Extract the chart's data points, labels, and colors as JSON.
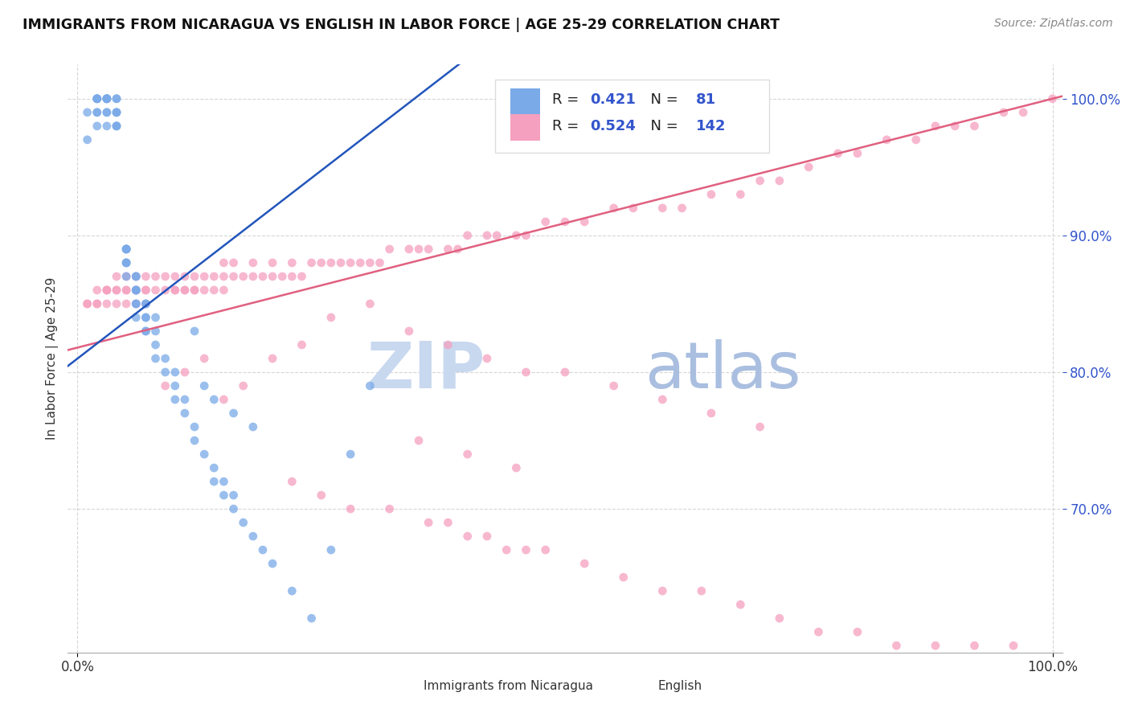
{
  "title": "IMMIGRANTS FROM NICARAGUA VS ENGLISH IN LABOR FORCE | AGE 25-29 CORRELATION CHART",
  "source": "Source: ZipAtlas.com",
  "ylabel": "In Labor Force | Age 25-29",
  "ytick_labels": [
    "70.0%",
    "80.0%",
    "90.0%",
    "100.0%"
  ],
  "xtick_labels": [
    "0.0%",
    "100.0%"
  ],
  "blue_R": "0.421",
  "blue_N": "81",
  "pink_R": "0.524",
  "pink_N": "142",
  "blue_scatter_color": "#7aaae8",
  "pink_scatter_color": "#f5a0bf",
  "blue_line_color": "#2255bb",
  "pink_line_color": "#e06080",
  "blue_legend_color": "#7aaae8",
  "pink_legend_color": "#f5a0bf",
  "value_color": "#3355cc",
  "watermark_color": "#d0e4f7",
  "background_color": "#ffffff",
  "blue_x": [
    0.01,
    0.01,
    0.02,
    0.02,
    0.02,
    0.02,
    0.02,
    0.02,
    0.02,
    0.03,
    0.03,
    0.03,
    0.03,
    0.03,
    0.03,
    0.03,
    0.03,
    0.04,
    0.04,
    0.04,
    0.04,
    0.04,
    0.04,
    0.04,
    0.04,
    0.05,
    0.05,
    0.05,
    0.05,
    0.05,
    0.05,
    0.05,
    0.05,
    0.06,
    0.06,
    0.06,
    0.06,
    0.06,
    0.06,
    0.06,
    0.06,
    0.07,
    0.07,
    0.07,
    0.07,
    0.07,
    0.07,
    0.08,
    0.08,
    0.08,
    0.08,
    0.09,
    0.09,
    0.1,
    0.1,
    0.1,
    0.11,
    0.11,
    0.12,
    0.12,
    0.13,
    0.14,
    0.14,
    0.15,
    0.15,
    0.16,
    0.16,
    0.17,
    0.18,
    0.19,
    0.2,
    0.22,
    0.24,
    0.26,
    0.28,
    0.3,
    0.12,
    0.13,
    0.14,
    0.16,
    0.18
  ],
  "blue_y": [
    0.97,
    0.99,
    0.98,
    0.99,
    0.99,
    1.0,
    1.0,
    1.0,
    1.0,
    0.98,
    0.99,
    0.99,
    1.0,
    1.0,
    1.0,
    1.0,
    1.0,
    0.98,
    0.98,
    0.98,
    0.99,
    0.99,
    0.99,
    1.0,
    1.0,
    0.87,
    0.88,
    0.88,
    0.88,
    0.89,
    0.89,
    0.89,
    0.89,
    0.84,
    0.85,
    0.85,
    0.86,
    0.86,
    0.86,
    0.87,
    0.87,
    0.83,
    0.83,
    0.84,
    0.84,
    0.85,
    0.85,
    0.81,
    0.82,
    0.83,
    0.84,
    0.8,
    0.81,
    0.78,
    0.79,
    0.8,
    0.77,
    0.78,
    0.75,
    0.76,
    0.74,
    0.72,
    0.73,
    0.71,
    0.72,
    0.7,
    0.71,
    0.69,
    0.68,
    0.67,
    0.66,
    0.64,
    0.62,
    0.67,
    0.74,
    0.79,
    0.83,
    0.79,
    0.78,
    0.77,
    0.76
  ],
  "pink_x": [
    0.01,
    0.01,
    0.02,
    0.02,
    0.02,
    0.03,
    0.03,
    0.03,
    0.03,
    0.04,
    0.04,
    0.04,
    0.04,
    0.05,
    0.05,
    0.05,
    0.05,
    0.06,
    0.06,
    0.06,
    0.06,
    0.07,
    0.07,
    0.07,
    0.07,
    0.08,
    0.08,
    0.09,
    0.09,
    0.1,
    0.1,
    0.1,
    0.11,
    0.11,
    0.11,
    0.12,
    0.12,
    0.12,
    0.13,
    0.13,
    0.14,
    0.14,
    0.15,
    0.15,
    0.15,
    0.16,
    0.16,
    0.17,
    0.18,
    0.18,
    0.19,
    0.2,
    0.2,
    0.21,
    0.22,
    0.22,
    0.23,
    0.24,
    0.25,
    0.26,
    0.27,
    0.28,
    0.29,
    0.3,
    0.31,
    0.32,
    0.34,
    0.35,
    0.36,
    0.38,
    0.39,
    0.4,
    0.42,
    0.43,
    0.45,
    0.46,
    0.48,
    0.5,
    0.52,
    0.55,
    0.57,
    0.6,
    0.62,
    0.65,
    0.68,
    0.7,
    0.72,
    0.75,
    0.78,
    0.8,
    0.83,
    0.86,
    0.88,
    0.9,
    0.92,
    0.95,
    0.97,
    1.0,
    0.15,
    0.17,
    0.2,
    0.23,
    0.26,
    0.3,
    0.34,
    0.38,
    0.42,
    0.46,
    0.5,
    0.55,
    0.6,
    0.65,
    0.7,
    0.09,
    0.11,
    0.13,
    0.35,
    0.4,
    0.45,
    0.22,
    0.25,
    0.28,
    0.32,
    0.36,
    0.4,
    0.44,
    0.48,
    0.52,
    0.56,
    0.6,
    0.64,
    0.68,
    0.72,
    0.76,
    0.8,
    0.84,
    0.88,
    0.92,
    0.96,
    0.38,
    0.42,
    0.46
  ],
  "pink_y": [
    0.85,
    0.85,
    0.85,
    0.85,
    0.86,
    0.85,
    0.86,
    0.86,
    0.86,
    0.85,
    0.86,
    0.86,
    0.87,
    0.85,
    0.86,
    0.86,
    0.87,
    0.85,
    0.86,
    0.86,
    0.87,
    0.85,
    0.86,
    0.86,
    0.87,
    0.86,
    0.87,
    0.86,
    0.87,
    0.86,
    0.86,
    0.87,
    0.86,
    0.86,
    0.87,
    0.86,
    0.86,
    0.87,
    0.86,
    0.87,
    0.86,
    0.87,
    0.86,
    0.87,
    0.88,
    0.87,
    0.88,
    0.87,
    0.87,
    0.88,
    0.87,
    0.87,
    0.88,
    0.87,
    0.87,
    0.88,
    0.87,
    0.88,
    0.88,
    0.88,
    0.88,
    0.88,
    0.88,
    0.88,
    0.88,
    0.89,
    0.89,
    0.89,
    0.89,
    0.89,
    0.89,
    0.9,
    0.9,
    0.9,
    0.9,
    0.9,
    0.91,
    0.91,
    0.91,
    0.92,
    0.92,
    0.92,
    0.92,
    0.93,
    0.93,
    0.94,
    0.94,
    0.95,
    0.96,
    0.96,
    0.97,
    0.97,
    0.98,
    0.98,
    0.98,
    0.99,
    0.99,
    1.0,
    0.78,
    0.79,
    0.81,
    0.82,
    0.84,
    0.85,
    0.83,
    0.82,
    0.81,
    0.8,
    0.8,
    0.79,
    0.78,
    0.77,
    0.76,
    0.79,
    0.8,
    0.81,
    0.75,
    0.74,
    0.73,
    0.72,
    0.71,
    0.7,
    0.7,
    0.69,
    0.68,
    0.67,
    0.67,
    0.66,
    0.65,
    0.64,
    0.64,
    0.63,
    0.62,
    0.61,
    0.61,
    0.6,
    0.6,
    0.6,
    0.6,
    0.69,
    0.68,
    0.67
  ]
}
